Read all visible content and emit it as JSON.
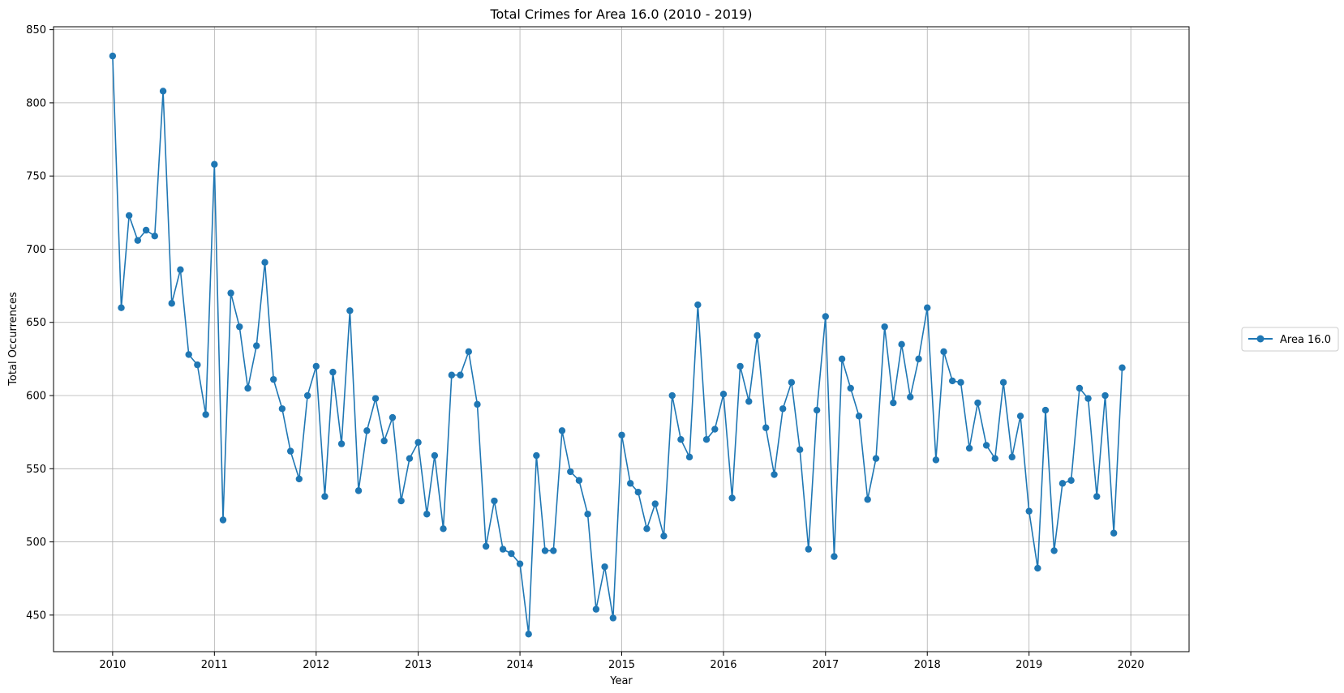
{
  "chart_data": {
    "type": "line",
    "title": "Total Crimes for Area 16.0 (2010 - 2019)",
    "xlabel": "Year",
    "ylabel": "Total Occurrences",
    "xlim": [
      "2009-06-03",
      "2020-07-28"
    ],
    "ylim": [
      425,
      852
    ],
    "xticks": [
      "2010",
      "2011",
      "2012",
      "2013",
      "2014",
      "2015",
      "2016",
      "2017",
      "2018",
      "2019",
      "2020"
    ],
    "yticks": [
      450,
      500,
      550,
      600,
      650,
      700,
      750,
      800,
      850
    ],
    "grid": true,
    "legend_position": "right",
    "series": [
      {
        "name": "Area 16.0",
        "color": "#1f77b4",
        "marker": "circle",
        "x": [
          "2010-01",
          "2010-02",
          "2010-03",
          "2010-04",
          "2010-05",
          "2010-06",
          "2010-07",
          "2010-08",
          "2010-09",
          "2010-10",
          "2010-11",
          "2010-12",
          "2011-01",
          "2011-02",
          "2011-03",
          "2011-04",
          "2011-05",
          "2011-06",
          "2011-07",
          "2011-08",
          "2011-09",
          "2011-10",
          "2011-11",
          "2011-12",
          "2012-01",
          "2012-02",
          "2012-03",
          "2012-04",
          "2012-05",
          "2012-06",
          "2012-07",
          "2012-08",
          "2012-09",
          "2012-10",
          "2012-11",
          "2012-12",
          "2013-01",
          "2013-02",
          "2013-03",
          "2013-04",
          "2013-05",
          "2013-06",
          "2013-07",
          "2013-08",
          "2013-09",
          "2013-10",
          "2013-11",
          "2013-12",
          "2014-01",
          "2014-02",
          "2014-03",
          "2014-04",
          "2014-05",
          "2014-06",
          "2014-07",
          "2014-08",
          "2014-09",
          "2014-10",
          "2014-11",
          "2014-12",
          "2015-01",
          "2015-02",
          "2015-03",
          "2015-04",
          "2015-05",
          "2015-06",
          "2015-07",
          "2015-08",
          "2015-09",
          "2015-10",
          "2015-11",
          "2015-12",
          "2016-01",
          "2016-02",
          "2016-03",
          "2016-04",
          "2016-05",
          "2016-06",
          "2016-07",
          "2016-08",
          "2016-09",
          "2016-10",
          "2016-11",
          "2016-12",
          "2017-01",
          "2017-02",
          "2017-03",
          "2017-04",
          "2017-05",
          "2017-06",
          "2017-07",
          "2017-08",
          "2017-09",
          "2017-10",
          "2017-11",
          "2017-12",
          "2018-01",
          "2018-02",
          "2018-03",
          "2018-04",
          "2018-05",
          "2018-06",
          "2018-07",
          "2018-08",
          "2018-09",
          "2018-10",
          "2018-11",
          "2018-12",
          "2019-01",
          "2019-02",
          "2019-03",
          "2019-04",
          "2019-05",
          "2019-06",
          "2019-07",
          "2019-08",
          "2019-09",
          "2019-10",
          "2019-11",
          "2019-12"
        ],
        "values": [
          832,
          660,
          723,
          706,
          713,
          709,
          808,
          663,
          686,
          628,
          621,
          587,
          758,
          515,
          670,
          647,
          605,
          634,
          691,
          611,
          591,
          562,
          543,
          600,
          620,
          531,
          616,
          567,
          658,
          535,
          576,
          598,
          569,
          585,
          528,
          557,
          568,
          519,
          559,
          509,
          614,
          614,
          630,
          594,
          497,
          528,
          495,
          492,
          485,
          437,
          559,
          494,
          494,
          576,
          548,
          542,
          519,
          454,
          483,
          448,
          573,
          540,
          534,
          509,
          526,
          504,
          600,
          570,
          558,
          662,
          570,
          577,
          601,
          530,
          620,
          596,
          641,
          578,
          546,
          591,
          609,
          563,
          495,
          590,
          654,
          490,
          625,
          605,
          586,
          529,
          557,
          647,
          595,
          635,
          599,
          625,
          660,
          556,
          630,
          610,
          609,
          564,
          595,
          566,
          557,
          609,
          558,
          586,
          521,
          482,
          590,
          494,
          540,
          542,
          605,
          598,
          531,
          600,
          506,
          619
        ]
      }
    ]
  }
}
